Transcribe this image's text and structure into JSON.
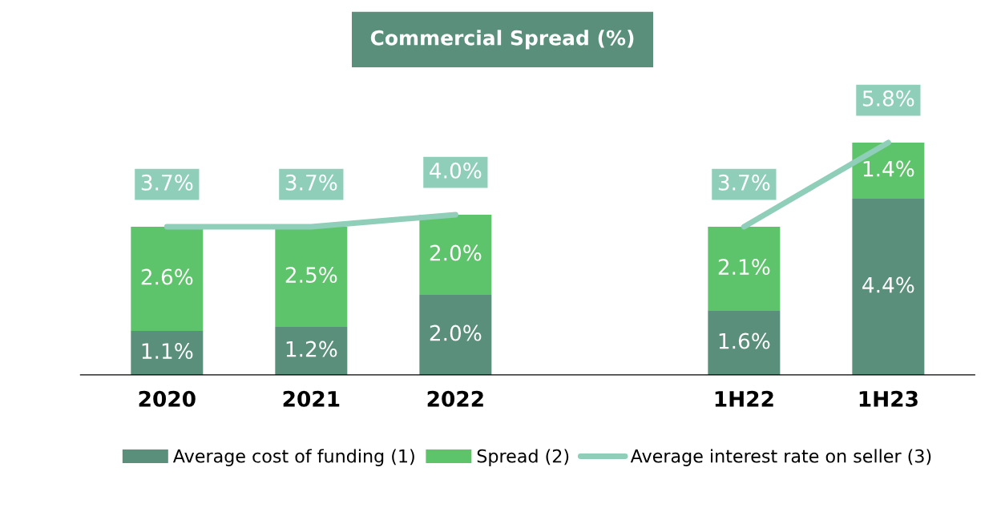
{
  "chart_data": {
    "type": "bar",
    "title": "Commercial Spread (%)",
    "stacked": true,
    "legend": "bottom",
    "grid": false,
    "categories": [
      "2020",
      "2021",
      "2022",
      null,
      "1H22",
      "1H23"
    ],
    "series": [
      {
        "name": "Average cost of funding (1)",
        "color": "#5a8f7b",
        "values": [
          1.1,
          1.2,
          2.0,
          null,
          1.6,
          4.4
        ],
        "value_labels": [
          "1.1%",
          "1.2%",
          "2.0%",
          null,
          "1.6%",
          "4.4%"
        ]
      },
      {
        "name": "Spread (2)",
        "color": "#5ec46b",
        "values": [
          2.6,
          2.5,
          2.0,
          null,
          2.1,
          1.4
        ],
        "value_labels": [
          "2.6%",
          "2.5%",
          "2.0%",
          null,
          "2.1%",
          "1.4%"
        ]
      },
      {
        "name": "Average interest rate on seller (3)",
        "type": "line",
        "color": "#8fcfb9",
        "values": [
          3.7,
          3.7,
          4.0,
          null,
          3.7,
          5.8
        ],
        "value_labels": [
          "3.7%",
          "3.7%",
          "4.0%",
          null,
          "3.7%",
          "5.8%"
        ]
      }
    ]
  }
}
